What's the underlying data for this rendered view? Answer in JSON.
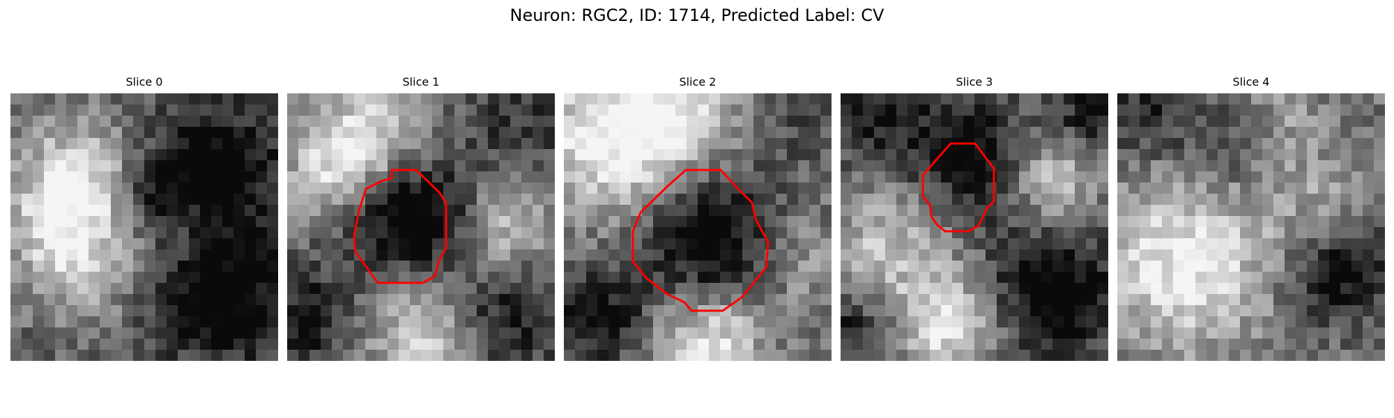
{
  "figure": {
    "title": "Neuron: RGC2, ID: 1714, Predicted Label: CV"
  },
  "panels": [
    {
      "title": "Slice 0",
      "contour": false
    },
    {
      "title": "Slice 1",
      "contour": true
    },
    {
      "title": "Slice 2",
      "contour": true
    },
    {
      "title": "Slice 3",
      "contour": true
    },
    {
      "title": "Slice 4",
      "contour": false
    }
  ],
  "style": {
    "contour_color": "#ff0000",
    "colormap": "grayscale"
  }
}
